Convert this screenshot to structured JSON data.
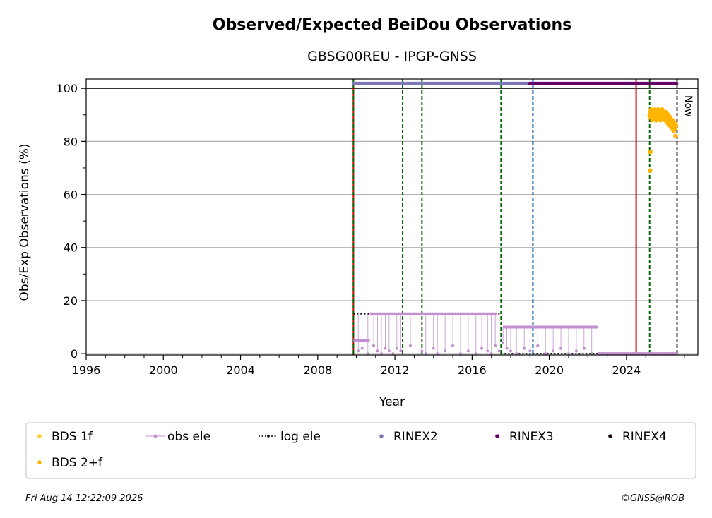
{
  "chart_data": {
    "type": "scatter",
    "title": "Observed/Expected BeiDou Observations",
    "subtitle": "GBSG00REU - IPGP-GNSS",
    "xlabel": "Year",
    "ylabel": "Obs/Exp Observations (%)",
    "xlim": [
      1996,
      2027.7
    ],
    "ylim": [
      -0.5,
      103.5
    ],
    "x_ticks": [
      1996,
      2000,
      2004,
      2008,
      2012,
      2016,
      2020,
      2024
    ],
    "x_tick_labels": [
      "1996",
      "2000",
      "2004",
      "2008",
      "2012",
      "2016",
      "2020",
      "2024"
    ],
    "y_ticks": [
      0,
      20,
      40,
      60,
      80,
      100
    ],
    "y_tick_labels": [
      "0",
      "20",
      "40",
      "60",
      "80",
      "100"
    ],
    "grid": "y",
    "now_label": "Now",
    "now_x": 2026.62,
    "reference_line_y": 100,
    "events": [
      {
        "x": 2009.85,
        "color": "#cc0000",
        "style": "solid"
      },
      {
        "x": 2009.85,
        "color": "#006600",
        "style": "dashed"
      },
      {
        "x": 2012.4,
        "color": "#006600",
        "style": "dashed"
      },
      {
        "x": 2013.4,
        "color": "#006600",
        "style": "dashed"
      },
      {
        "x": 2017.5,
        "color": "#006600",
        "style": "dashed"
      },
      {
        "x": 2019.15,
        "color": "#0055aa",
        "style": "dashed"
      },
      {
        "x": 2024.5,
        "color": "#cc0000",
        "style": "solid"
      },
      {
        "x": 2025.2,
        "color": "#006600",
        "style": "dashed"
      }
    ],
    "series": [
      {
        "name": "BDS 1f",
        "color": "#ffcc33",
        "x": [],
        "y": []
      },
      {
        "name": "obs ele",
        "color": "#c38fcf",
        "segments": [
          {
            "x": [
              2009.85,
              2010.7
            ],
            "y": [
              5,
              5
            ]
          },
          {
            "x": [
              2010.7,
              2017.3
            ],
            "y": [
              15,
              15
            ]
          },
          {
            "x": [
              2017.6,
              2022.5
            ],
            "y": [
              10,
              10
            ]
          },
          {
            "x": [
              2022.5,
              2026.6
            ],
            "y": [
              0,
              0
            ]
          }
        ],
        "x": [
          2010.1,
          2010.3,
          2010.6,
          2010.9,
          2011.1,
          2011.3,
          2011.5,
          2011.7,
          2011.9,
          2012.1,
          2012.3,
          2012.8,
          2013.4,
          2013.6,
          2014.0,
          2014.2,
          2014.6,
          2015.0,
          2015.4,
          2015.8,
          2016.2,
          2016.5,
          2016.8,
          2017.0,
          2017.2,
          2017.4,
          2017.6,
          2017.8,
          2018.0,
          2018.3,
          2018.7,
          2019.0,
          2019.4,
          2019.8,
          2020.2,
          2020.6,
          2021.0,
          2021.4,
          2021.8,
          2022.2
        ],
        "y": [
          1,
          2,
          0,
          3,
          1,
          0,
          2,
          1,
          0,
          2,
          1,
          3,
          1,
          0,
          2,
          0,
          1,
          3,
          0,
          1,
          0,
          2,
          1,
          0,
          3,
          1,
          4,
          2,
          1,
          0,
          2,
          1,
          3,
          0,
          1,
          2,
          0,
          1,
          2,
          0
        ]
      },
      {
        "name": "log ele",
        "color": "#000000",
        "segments": [
          {
            "x": [
              2009.85,
              2017.5
            ],
            "y": [
              15,
              15
            ]
          },
          {
            "x": [
              2017.5,
              2026.6
            ],
            "y": [
              0,
              0
            ]
          }
        ]
      },
      {
        "name": "RINEX2",
        "color": "#7f78b8",
        "segments": [
          {
            "x": [
              2009.85,
              2019.0
            ],
            "y": [
              101.8,
              101.8
            ]
          }
        ]
      },
      {
        "name": "RINEX3",
        "color": "#660066",
        "segments": [
          {
            "x": [
              2019.0,
              2026.6
            ],
            "y": [
              101.8,
              101.8
            ]
          }
        ]
      },
      {
        "name": "RINEX4",
        "color": "#1a0a1a",
        "x": [],
        "y": []
      },
      {
        "name": "BDS 2+f",
        "color": "#ffb400",
        "x": [
          2025.2,
          2025.22,
          2025.25,
          2025.28,
          2025.31,
          2025.34,
          2025.37,
          2025.4,
          2025.43,
          2025.46,
          2025.49,
          2025.52,
          2025.55,
          2025.58,
          2025.61,
          2025.64,
          2025.67,
          2025.7,
          2025.73,
          2025.76,
          2025.79,
          2025.82,
          2025.85,
          2025.88,
          2025.91,
          2025.94,
          2025.97,
          2026.0,
          2026.03,
          2026.06,
          2026.09,
          2026.12,
          2026.15,
          2026.18,
          2026.21,
          2026.24,
          2026.27,
          2026.3,
          2026.33,
          2026.36,
          2026.39,
          2026.42,
          2026.45,
          2026.48,
          2026.51,
          2026.54,
          2026.57,
          2025.24,
          2025.23
        ],
        "y": [
          90,
          91,
          89,
          92,
          90,
          88,
          91,
          90,
          89,
          92,
          91,
          90,
          88,
          91,
          90,
          92,
          89,
          90,
          91,
          88,
          90,
          91,
          92,
          90,
          89,
          91,
          90,
          88,
          89,
          91,
          90,
          87,
          89,
          90,
          88,
          86,
          89,
          88,
          87,
          85,
          88,
          86,
          84,
          87,
          85,
          82,
          86,
          76,
          69
        ]
      }
    ],
    "legend": {
      "placement": "bottom",
      "entries": [
        "BDS 1f",
        "obs ele",
        "log ele",
        "RINEX2",
        "RINEX3",
        "RINEX4",
        "BDS 2+f"
      ]
    }
  },
  "footer": {
    "timestamp": "Fri Aug 14 12:22:09 2026",
    "credit": "©GNSS@ROB"
  }
}
